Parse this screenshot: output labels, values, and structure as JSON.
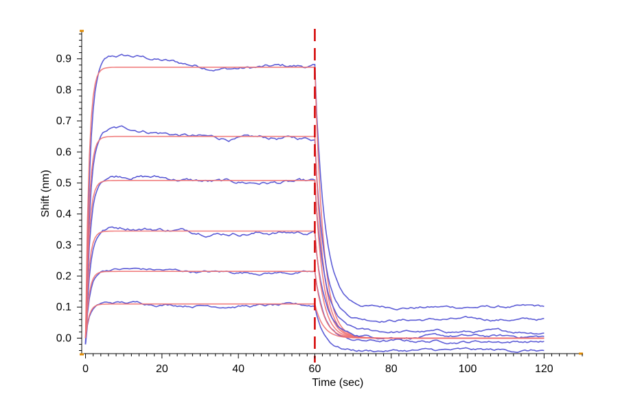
{
  "chart_data": {
    "type": "line",
    "title": "",
    "xlabel": "Time (sec)",
    "ylabel": "Shift (nm)",
    "xlim": [
      -1,
      130
    ],
    "ylim": [
      -0.05,
      0.99
    ],
    "x_ticks": [
      0,
      20,
      40,
      60,
      80,
      100,
      120
    ],
    "y_ticks": [
      0.0,
      0.1,
      0.2,
      0.3,
      0.4,
      0.5,
      0.6,
      0.7,
      0.8,
      0.9
    ],
    "grid": false,
    "legend": "none",
    "dissociation_start": 60,
    "colors": {
      "measured": "#5b5bd6",
      "fit": "#f07070",
      "marker": "#d40000",
      "axis_end": "#e08a00"
    },
    "series": [
      {
        "plateau": 0.873,
        "measured_end": 0.848,
        "residual": 0.1,
        "fit_residual": 0.0
      },
      {
        "plateau": 0.65,
        "measured_end": 0.622,
        "residual": 0.06,
        "fit_residual": 0.0
      },
      {
        "plateau": 0.508,
        "measured_end": 0.485,
        "residual": 0.02,
        "fit_residual": 0.0
      },
      {
        "plateau": 0.345,
        "measured_end": 0.33,
        "residual": 0.005,
        "fit_residual": 0.0
      },
      {
        "plateau": 0.215,
        "measured_end": 0.205,
        "residual": -0.01,
        "fit_residual": 0.0
      },
      {
        "plateau": 0.11,
        "measured_end": 0.1,
        "residual": -0.04,
        "fit_residual": 0.0
      }
    ]
  }
}
